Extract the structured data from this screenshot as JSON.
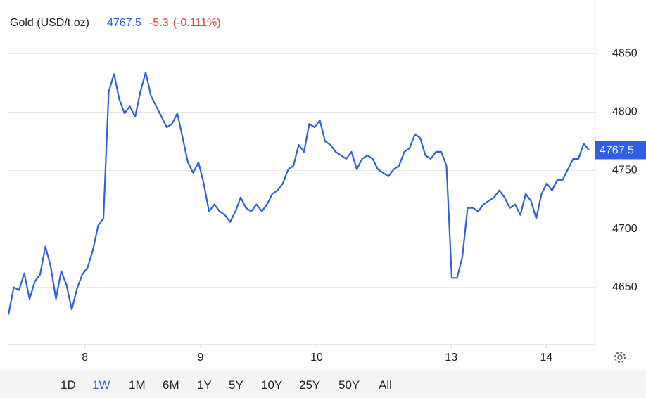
{
  "chart_data": {
    "type": "line",
    "header": {
      "name": "Gold (USD/t.oz)",
      "price": "4767.5",
      "change": "-5.3",
      "change_percent": "(-0.111%)"
    },
    "series": [
      {
        "name": "Gold (USD/t.oz)",
        "color": "#2f5fe8",
        "values": [
          4626.5,
          4650,
          4647.6,
          4662,
          4640,
          4655,
          4661,
          4685,
          4668,
          4640,
          4664,
          4652,
          4631,
          4649,
          4661,
          4667,
          4682,
          4703,
          4709,
          4817.5,
          4832.5,
          4811,
          4799,
          4805,
          4796,
          4817.5,
          4834,
          4814,
          4805,
          4796,
          4787,
          4790,
          4799,
          4778,
          4757,
          4748,
          4757,
          4739,
          4715,
          4721,
          4715,
          4712,
          4706,
          4715,
          4727,
          4718,
          4715,
          4721,
          4715,
          4721,
          4730,
          4733,
          4739,
          4751,
          4754,
          4772,
          4766,
          4790,
          4787,
          4793,
          4775,
          4772,
          4766,
          4763,
          4760,
          4766,
          4751,
          4760,
          4763,
          4760,
          4751,
          4748,
          4745,
          4751,
          4754,
          4766,
          4769,
          4781,
          4778,
          4763,
          4760,
          4766,
          4766,
          4754,
          4658,
          4658,
          4676,
          4718,
          4718,
          4715,
          4721,
          4724,
          4727,
          4733,
          4727,
          4718,
          4721,
          4712,
          4730,
          4724,
          4709,
          4730,
          4739,
          4733,
          4742,
          4742,
          4751,
          4760,
          4760,
          4773,
          4767.5
        ]
      }
    ],
    "last_value": {
      "value": 4767.5,
      "label": "4767.5"
    },
    "xlim": [
      0,
      110
    ],
    "xticks": [
      {
        "value": 14.5,
        "label": "8"
      },
      {
        "value": 36.4,
        "label": "9"
      },
      {
        "value": 58.4,
        "label": "10"
      },
      {
        "value": 83.9,
        "label": "13"
      },
      {
        "value": 101.9,
        "label": "14"
      }
    ],
    "ylim": [
      4601,
      4896
    ],
    "yticks": [
      4650,
      4700,
      4750,
      4800,
      4850
    ],
    "grid": true,
    "ranges": [
      "1D",
      "1W",
      "1M",
      "6M",
      "1Y",
      "5Y",
      "10Y",
      "25Y",
      "50Y",
      "All"
    ],
    "active_range": 1
  }
}
